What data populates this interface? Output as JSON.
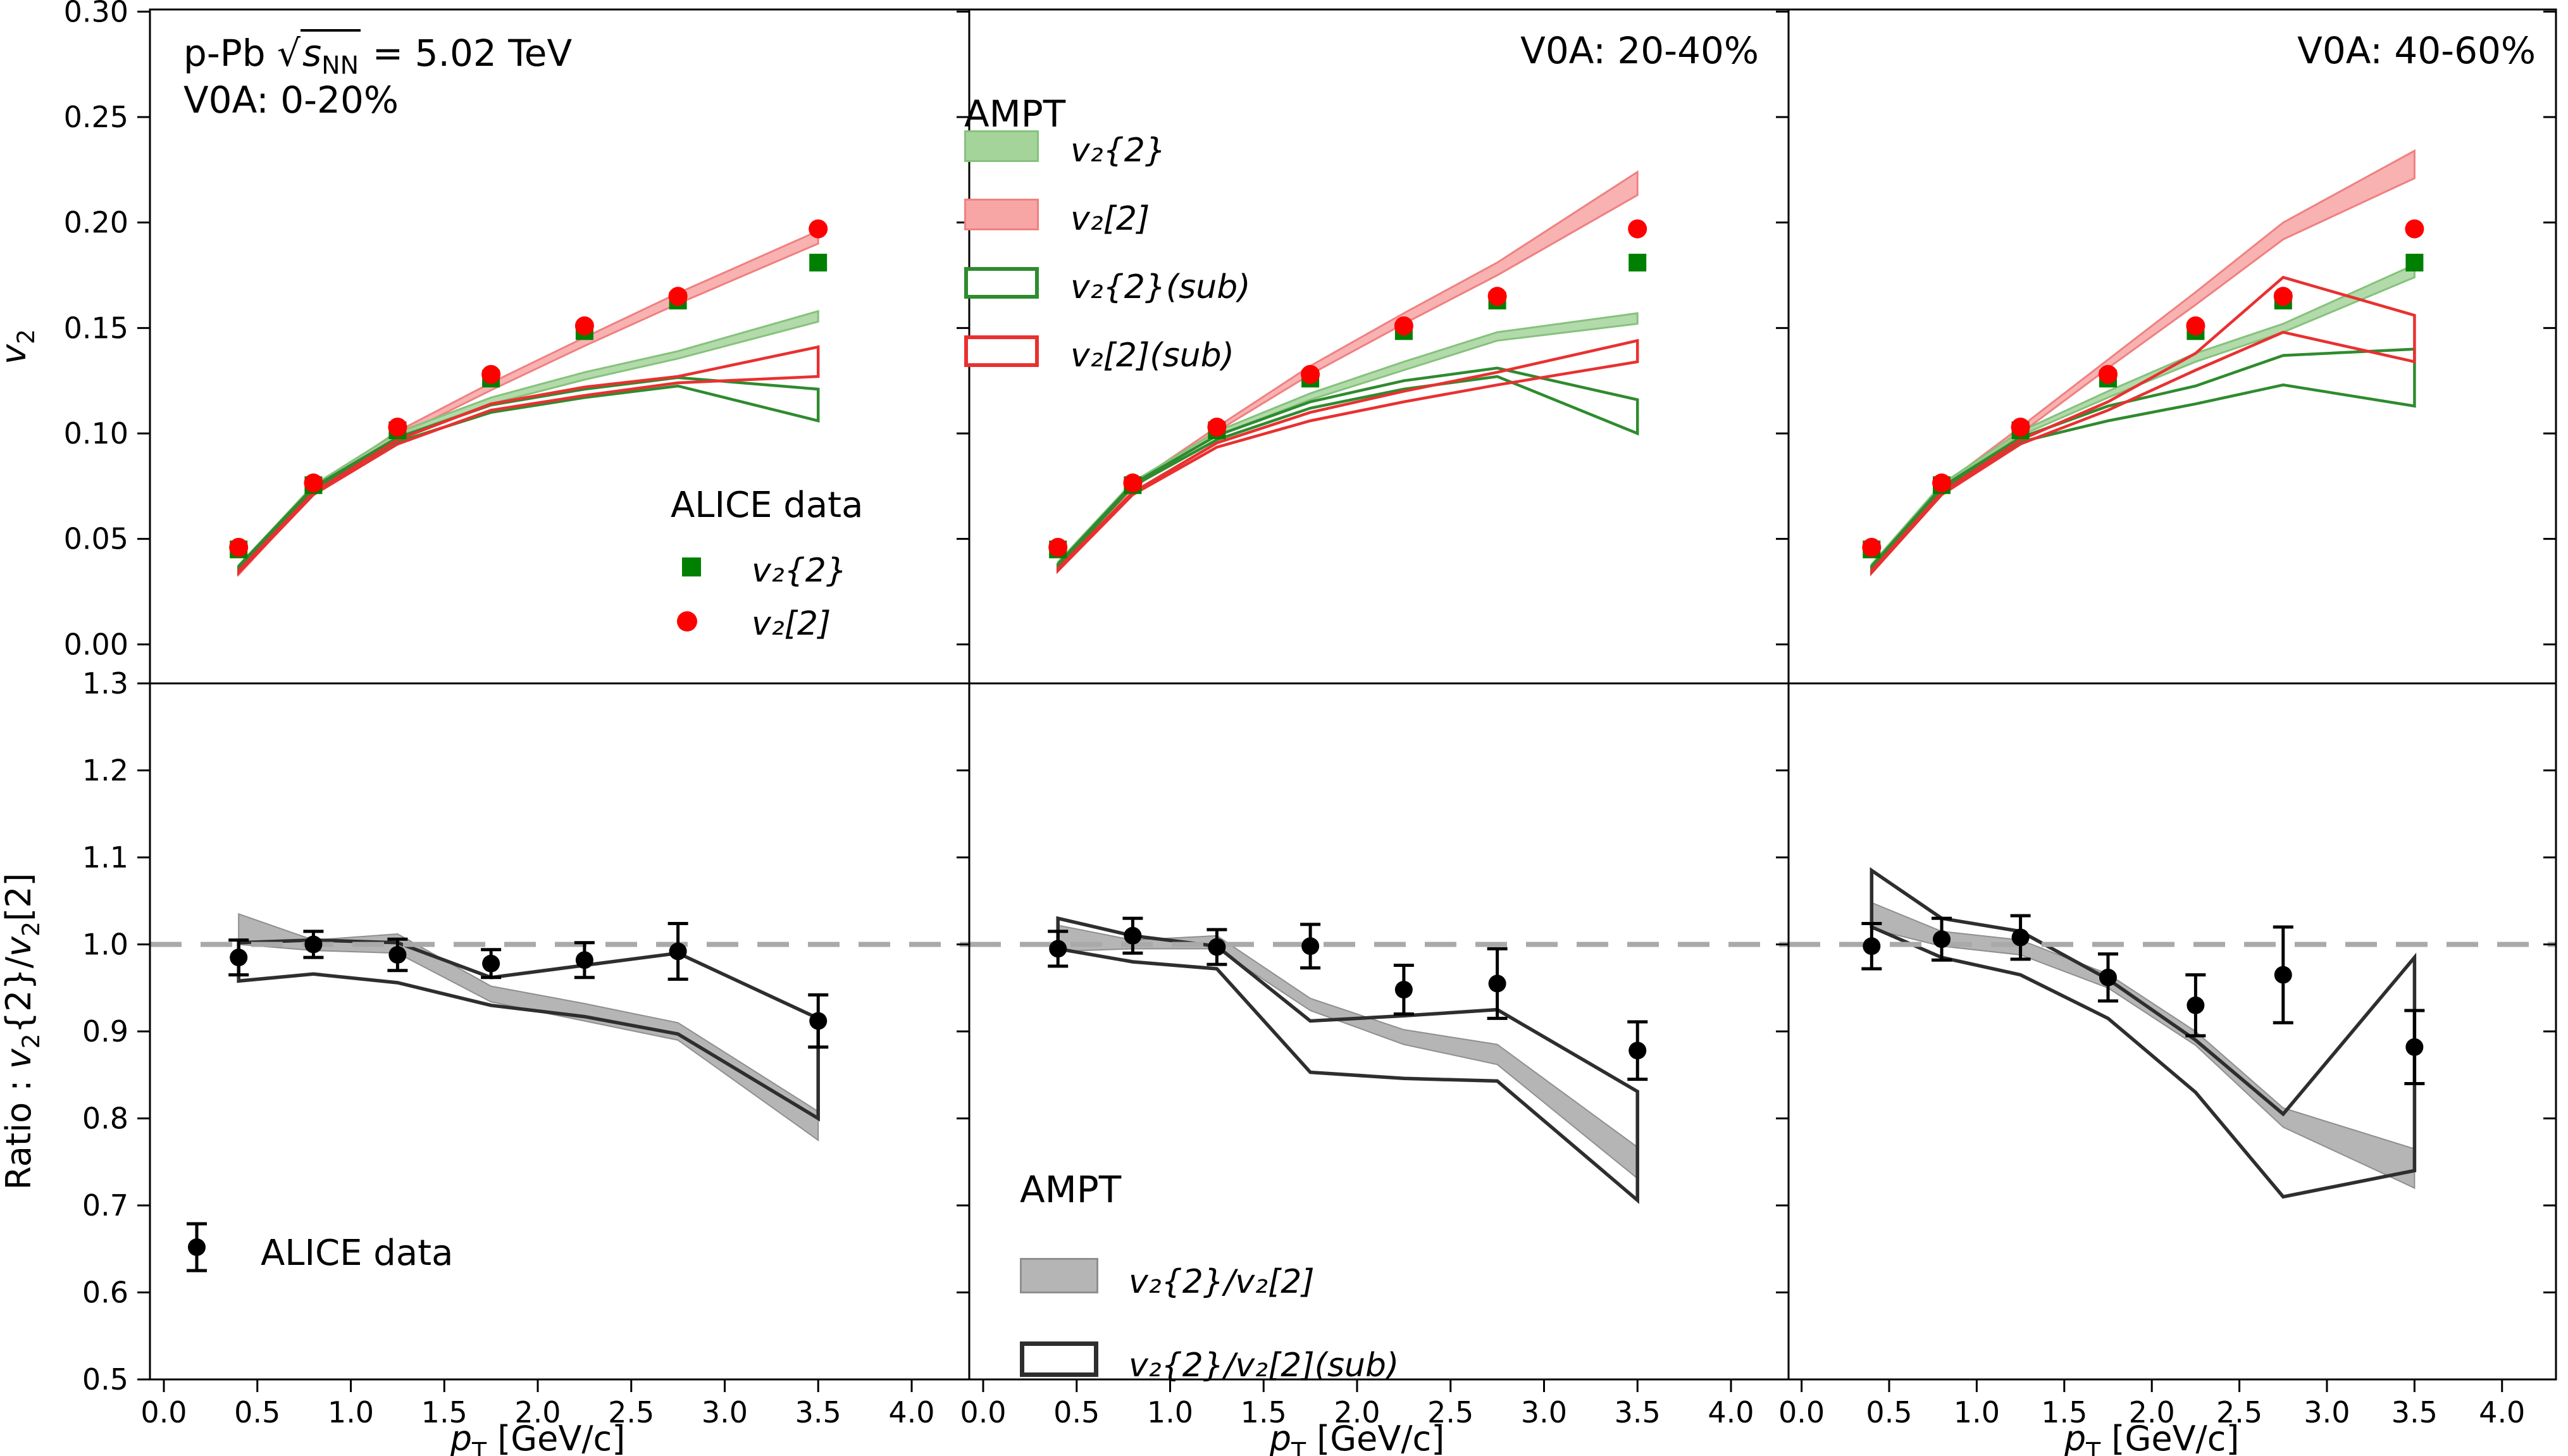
{
  "figure": {
    "title": {
      "system": "p-Pb ",
      "sqrt": "√",
      "s": "s",
      "s_sub": "NN",
      "energy": " = 5.02 TeV"
    },
    "centrality_labels": [
      "V0A: 0-20%",
      "V0A: 20-40%",
      "V0A: 40-60%"
    ],
    "model_label": "AMPT",
    "colors": {
      "alice_square": "#008000",
      "alice_circle": "#ff0000",
      "band_green_fill": "#a5d49b",
      "band_green_edge": "#85c27c",
      "band_pink_fill": "#f7a5a5",
      "band_pink_edge": "#f08080",
      "sub_green": "#2e8b2e",
      "sub_red": "#e93030",
      "gray_band_fill": "#b5b5b5",
      "gray_band_edge": "#8f8f8f",
      "ratio_outline": "#2e2e2e",
      "dashed": "#a9a9a9",
      "frame": "#000000",
      "data_black": "#000000"
    },
    "legends": {
      "alice_top": {
        "title": "ALICE data",
        "items": [
          {
            "marker": "square",
            "color": "#008000",
            "label": "v₂{2}"
          },
          {
            "marker": "circle",
            "color": "#ff0000",
            "label": "v₂[2]"
          }
        ]
      },
      "ampt_top": {
        "title": "AMPT",
        "items": [
          {
            "swatch": "fill-green",
            "label": "v₂{2}"
          },
          {
            "swatch": "fill-pink",
            "label": "v₂[2]"
          },
          {
            "swatch": "outline-green",
            "label": "v₂{2}(sub)"
          },
          {
            "swatch": "outline-red",
            "label": "v₂[2](sub)"
          }
        ]
      },
      "alice_bottom": {
        "label": "ALICE data"
      },
      "ampt_bottom": {
        "title": "AMPT",
        "items": [
          {
            "swatch": "fill-gray",
            "label": "v₂{2}/v₂[2]"
          },
          {
            "swatch": "outline-black",
            "label": "v₂{2}/v₂[2](sub)"
          }
        ]
      }
    }
  },
  "chart_data": {
    "type": "line",
    "x": [
      0.4,
      0.8,
      1.25,
      1.75,
      2.25,
      2.75,
      3.5
    ],
    "xlim": [
      -0.0745,
      4.308
    ],
    "xticks": [
      0.0,
      0.5,
      1.0,
      1.5,
      2.0,
      2.5,
      3.0,
      3.5,
      4.0
    ],
    "xlabel_segments": [
      {
        "t": "p",
        "i": 1
      },
      {
        "t": "T",
        "sub": 1
      },
      {
        "t": " [GeV/c]"
      }
    ],
    "top_row": {
      "ylim": [
        -0.0185,
        0.301
      ],
      "yticks": [
        0.0,
        0.05,
        0.1,
        0.15,
        0.2,
        0.25,
        0.3
      ],
      "ylabel_segments": [
        {
          "t": "v",
          "i": 1
        },
        {
          "t": "2",
          "sub": 1
        }
      ],
      "alice": {
        "v2_curly": [
          0.045,
          0.0755,
          0.1015,
          0.126,
          0.1485,
          0.163,
          0.181
        ],
        "v2_bracket": [
          0.046,
          0.0765,
          0.103,
          0.128,
          0.151,
          0.165,
          0.197
        ]
      },
      "panels": [
        {
          "centrality": "V0A: 0-20%",
          "v2_bracket_band": {
            "upper": [
              0.036,
              0.074,
              0.101,
              0.124,
              0.1455,
              0.1665,
              0.196
            ],
            "lower": [
              0.033,
              0.0715,
              0.0985,
              0.1205,
              0.1415,
              0.1615,
              0.19
            ]
          },
          "v2_curly_band": {
            "upper": [
              0.0375,
              0.0755,
              0.1005,
              0.117,
              0.129,
              0.139,
              0.158
            ],
            "lower": [
              0.036,
              0.0745,
              0.0985,
              0.114,
              0.1255,
              0.1355,
              0.153
            ]
          },
          "v2_curly_sub": {
            "upper": [
              0.037,
              0.0745,
              0.098,
              0.1135,
              0.121,
              0.1265,
              0.121
            ],
            "lower": [
              0.036,
              0.0735,
              0.096,
              0.11,
              0.117,
              0.1225,
              0.106
            ]
          },
          "v2_bracket_sub": {
            "upper": [
              0.035,
              0.072,
              0.097,
              0.114,
              0.122,
              0.127,
              0.141
            ],
            "lower": [
              0.034,
              0.071,
              0.095,
              0.111,
              0.118,
              0.124,
              0.127
            ]
          }
        },
        {
          "centrality": "V0A: 20-40%",
          "v2_bracket_band": {
            "upper": [
              0.038,
              0.076,
              0.103,
              0.132,
              0.157,
              0.181,
              0.224
            ],
            "lower": [
              0.035,
              0.074,
              0.101,
              0.128,
              0.152,
              0.175,
              0.213
            ]
          },
          "v2_curly_band": {
            "upper": [
              0.039,
              0.077,
              0.101,
              0.119,
              0.134,
              0.148,
              0.157
            ],
            "lower": [
              0.0375,
              0.0755,
              0.099,
              0.116,
              0.13,
              0.144,
              0.152
            ]
          },
          "v2_curly_sub": {
            "upper": [
              0.038,
              0.076,
              0.099,
              0.115,
              0.125,
              0.131,
              0.116
            ],
            "lower": [
              0.037,
              0.075,
              0.097,
              0.112,
              0.121,
              0.127,
              0.1
            ]
          },
          "v2_bracket_sub": {
            "upper": [
              0.036,
              0.072,
              0.0955,
              0.11,
              0.12,
              0.129,
              0.144
            ],
            "lower": [
              0.035,
              0.071,
              0.0935,
              0.106,
              0.115,
              0.123,
              0.134
            ]
          }
        },
        {
          "centrality": "V0A: 40-60%",
          "v2_bracket_band": {
            "upper": [
              0.037,
              0.075,
              0.103,
              0.135,
              0.167,
              0.2,
              0.234
            ],
            "lower": [
              0.034,
              0.073,
              0.1,
              0.131,
              0.161,
              0.192,
              0.221
            ]
          },
          "v2_curly_band": {
            "upper": [
              0.038,
              0.076,
              0.101,
              0.12,
              0.138,
              0.152,
              0.18
            ],
            "lower": [
              0.037,
              0.075,
              0.099,
              0.117,
              0.134,
              0.148,
              0.174
            ]
          },
          "v2_curly_sub": {
            "upper": [
              0.037,
              0.0745,
              0.098,
              0.113,
              0.1225,
              0.137,
              0.14
            ],
            "lower": [
              0.036,
              0.0735,
              0.096,
              0.106,
              0.114,
              0.123,
              0.113
            ]
          },
          "v2_bracket_sub": {
            "upper": [
              0.035,
              0.072,
              0.097,
              0.115,
              0.138,
              0.174,
              0.156
            ],
            "lower": [
              0.034,
              0.071,
              0.095,
              0.111,
              0.13,
              0.148,
              0.134
            ]
          }
        }
      ]
    },
    "bottom_row": {
      "ylim": [
        0.5,
        1.3
      ],
      "yticks": [
        0.5,
        0.6,
        0.7,
        0.8,
        0.9,
        1.0,
        1.1,
        1.2,
        1.3
      ],
      "dashed_y": 1.0,
      "ylabel_segments": [
        {
          "t": "Ratio : "
        },
        {
          "t": "v",
          "i": 1
        },
        {
          "t": "2",
          "sub": 1
        },
        {
          "t": "{2}/"
        },
        {
          "t": "v",
          "i": 1
        },
        {
          "t": "2",
          "sub": 1
        },
        {
          "t": "[2]"
        }
      ],
      "panels": [
        {
          "alice": {
            "y": [
              0.985,
              1.0,
              0.988,
              0.978,
              0.982,
              0.992,
              0.912
            ],
            "err": [
              0.02,
              0.015,
              0.018,
              0.016,
              0.02,
              0.032,
              0.03
            ]
          },
          "gray_band": {
            "upper": [
              1.035,
              1.005,
              1.012,
              0.952,
              0.932,
              0.91,
              0.808
            ],
            "lower": [
              1.0,
              0.993,
              0.99,
              0.934,
              0.912,
              0.89,
              0.775
            ]
          },
          "outline_band": {
            "upper": [
              1.002,
              1.005,
              1.002,
              0.962,
              0.976,
              0.99,
              0.915
            ],
            "lower": [
              0.958,
              0.966,
              0.956,
              0.93,
              0.917,
              0.897,
              0.8
            ]
          }
        },
        {
          "alice": {
            "y": [
              0.995,
              1.01,
              0.997,
              0.998,
              0.948,
              0.955,
              0.878
            ],
            "err": [
              0.02,
              0.02,
              0.02,
              0.025,
              0.028,
              0.04,
              0.033
            ]
          },
          "gray_band": {
            "upper": [
              1.022,
              1.005,
              1.01,
              0.938,
              0.902,
              0.885,
              0.767
            ],
            "lower": [
              0.992,
              0.995,
              0.995,
              0.924,
              0.885,
              0.862,
              0.731
            ]
          },
          "outline_band": {
            "upper": [
              1.03,
              1.01,
              0.998,
              0.912,
              0.918,
              0.925,
              0.831
            ],
            "lower": [
              0.995,
              0.98,
              0.972,
              0.853,
              0.846,
              0.843,
              0.706
            ]
          }
        },
        {
          "alice": {
            "y": [
              0.998,
              1.006,
              1.008,
              0.962,
              0.93,
              0.965,
              0.882
            ],
            "err": [
              0.026,
              0.024,
              0.025,
              0.027,
              0.035,
              0.055,
              0.042
            ]
          },
          "gray_band": {
            "upper": [
              1.048,
              1.015,
              1.005,
              0.966,
              0.9,
              0.812,
              0.765
            ],
            "lower": [
              1.018,
              0.998,
              0.988,
              0.95,
              0.884,
              0.79,
              0.72
            ]
          },
          "outline_band": {
            "upper": [
              1.085,
              1.03,
              1.015,
              0.96,
              0.89,
              0.805,
              0.985
            ],
            "lower": [
              1.02,
              0.985,
              0.965,
              0.915,
              0.83,
              0.71,
              0.74
            ]
          }
        }
      ]
    }
  }
}
